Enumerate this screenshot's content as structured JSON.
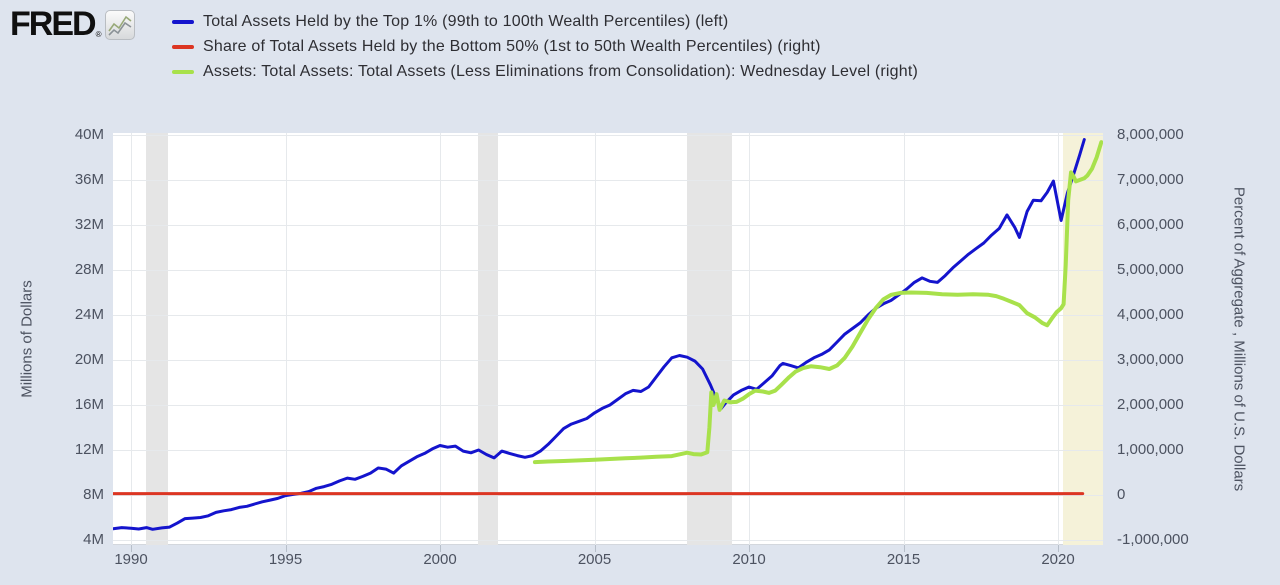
{
  "header": {
    "logo_text": "FRED",
    "logo_registered_mark": "®",
    "legend": [
      {
        "label": "Total Assets Held by the Top 1% (99th to 100th Wealth Percentiles) (left)",
        "color": "#1414cd"
      },
      {
        "label": "Share of Total Assets Held by the Bottom 50% (1st to 50th Wealth Percentiles) (right)",
        "color": "#dc3522"
      },
      {
        "label": "Assets: Total Assets: Total Assets (Less Eliminations from Consolidation): Wednesday Level (right)",
        "color": "#a8e14b"
      }
    ]
  },
  "axes": {
    "left": {
      "title": "Millions of Dollars",
      "ticks": [
        {
          "label": "40M",
          "v": 40
        },
        {
          "label": "36M",
          "v": 36
        },
        {
          "label": "32M",
          "v": 32
        },
        {
          "label": "28M",
          "v": 28
        },
        {
          "label": "24M",
          "v": 24
        },
        {
          "label": "20M",
          "v": 20
        },
        {
          "label": "16M",
          "v": 16
        },
        {
          "label": "12M",
          "v": 12
        },
        {
          "label": "8M",
          "v": 8
        },
        {
          "label": "4M",
          "v": 4
        }
      ],
      "map": {
        "v0": 4,
        "p0": 407,
        "v1": 40,
        "p1": 2
      }
    },
    "right": {
      "title": "Percent of Aggregate , Millions of U.S. Dollars",
      "ticks": [
        {
          "label": "8,000,000",
          "v": 8
        },
        {
          "label": "7,000,000",
          "v": 7
        },
        {
          "label": "6,000,000",
          "v": 6
        },
        {
          "label": "5,000,000",
          "v": 5
        },
        {
          "label": "4,000,000",
          "v": 4
        },
        {
          "label": "3,000,000",
          "v": 3
        },
        {
          "label": "2,000,000",
          "v": 2
        },
        {
          "label": "1,000,000",
          "v": 1
        },
        {
          "label": "0",
          "v": 0
        },
        {
          "label": "-1,000,000",
          "v": -1
        }
      ],
      "map": {
        "v0": 0,
        "p0": 362,
        "v1": 8,
        "p1": 2
      }
    },
    "x": {
      "ticks": [
        {
          "label": "1990",
          "v": 1990
        },
        {
          "label": "1995",
          "v": 1995
        },
        {
          "label": "2000",
          "v": 2000
        },
        {
          "label": "2005",
          "v": 2005
        },
        {
          "label": "2010",
          "v": 2010
        },
        {
          "label": "2015",
          "v": 2015
        },
        {
          "label": "2020",
          "v": 2020
        }
      ],
      "map": {
        "v0": 1990,
        "p0": 18,
        "v1": 2020,
        "p1": 945
      }
    }
  },
  "chart_data": {
    "type": "line",
    "x_range_years": [
      1989.42,
      2021.46
    ],
    "left_axis_range": [
      "4M",
      "40M"
    ],
    "right_axis_range": [
      -1000000,
      8000000
    ],
    "grid": true,
    "bands": [
      {
        "name": "recession-1990-91",
        "from": 1990.5,
        "to": 1991.2,
        "color": "#e5e5e5"
      },
      {
        "name": "recession-2001",
        "from": 2001.23,
        "to": 2001.88,
        "color": "#e5e5e5"
      },
      {
        "name": "recession-2008-09",
        "from": 2007.98,
        "to": 2009.45,
        "color": "#e5e5e5"
      },
      {
        "name": "recession-2020",
        "from": 2020.16,
        "to": 2021.46,
        "color": "#f5f2d9"
      }
    ],
    "series": [
      {
        "name": "Total Assets Held by the Top 1% (99th to 100th Wealth Percentiles)",
        "axis": "left",
        "units": "axis M (millions of dollars)",
        "color": "#1414cd",
        "width": 3,
        "points": [
          [
            1989.42,
            5.0
          ],
          [
            1989.7,
            5.1
          ],
          [
            1990.0,
            5.05
          ],
          [
            1990.25,
            4.98
          ],
          [
            1990.5,
            5.1
          ],
          [
            1990.7,
            4.95
          ],
          [
            1991.0,
            5.08
          ],
          [
            1991.25,
            5.15
          ],
          [
            1991.5,
            5.5
          ],
          [
            1991.75,
            5.9
          ],
          [
            1992.0,
            5.95
          ],
          [
            1992.25,
            6.0
          ],
          [
            1992.5,
            6.15
          ],
          [
            1992.75,
            6.45
          ],
          [
            1993.0,
            6.6
          ],
          [
            1993.25,
            6.7
          ],
          [
            1993.5,
            6.9
          ],
          [
            1993.75,
            7.0
          ],
          [
            1994.0,
            7.2
          ],
          [
            1994.25,
            7.4
          ],
          [
            1994.5,
            7.55
          ],
          [
            1994.75,
            7.7
          ],
          [
            1995.0,
            7.95
          ],
          [
            1995.25,
            8.05
          ],
          [
            1995.5,
            8.15
          ],
          [
            1995.75,
            8.3
          ],
          [
            1996.0,
            8.6
          ],
          [
            1996.25,
            8.75
          ],
          [
            1996.5,
            8.95
          ],
          [
            1996.75,
            9.25
          ],
          [
            1997.0,
            9.5
          ],
          [
            1997.25,
            9.4
          ],
          [
            1997.5,
            9.65
          ],
          [
            1997.75,
            9.95
          ],
          [
            1998.0,
            10.4
          ],
          [
            1998.25,
            10.3
          ],
          [
            1998.5,
            9.95
          ],
          [
            1998.75,
            10.6
          ],
          [
            1999.0,
            11.0
          ],
          [
            1999.25,
            11.4
          ],
          [
            1999.5,
            11.7
          ],
          [
            1999.75,
            12.1
          ],
          [
            2000.0,
            12.4
          ],
          [
            2000.25,
            12.25
          ],
          [
            2000.5,
            12.35
          ],
          [
            2000.75,
            11.9
          ],
          [
            2001.0,
            11.75
          ],
          [
            2001.25,
            12.0
          ],
          [
            2001.5,
            11.6
          ],
          [
            2001.75,
            11.3
          ],
          [
            2002.0,
            11.9
          ],
          [
            2002.25,
            11.7
          ],
          [
            2002.5,
            11.5
          ],
          [
            2002.75,
            11.35
          ],
          [
            2003.0,
            11.5
          ],
          [
            2003.25,
            11.9
          ],
          [
            2003.5,
            12.5
          ],
          [
            2003.75,
            13.2
          ],
          [
            2004.0,
            13.9
          ],
          [
            2004.25,
            14.3
          ],
          [
            2004.5,
            14.55
          ],
          [
            2004.75,
            14.8
          ],
          [
            2005.0,
            15.3
          ],
          [
            2005.25,
            15.7
          ],
          [
            2005.5,
            16.0
          ],
          [
            2005.75,
            16.5
          ],
          [
            2006.0,
            17.0
          ],
          [
            2006.25,
            17.3
          ],
          [
            2006.5,
            17.2
          ],
          [
            2006.75,
            17.6
          ],
          [
            2007.0,
            18.5
          ],
          [
            2007.25,
            19.4
          ],
          [
            2007.5,
            20.2
          ],
          [
            2007.75,
            20.4
          ],
          [
            2008.0,
            20.25
          ],
          [
            2008.25,
            19.9
          ],
          [
            2008.5,
            19.2
          ],
          [
            2008.75,
            17.8
          ],
          [
            2009.0,
            16.2
          ],
          [
            2009.1,
            15.7
          ],
          [
            2009.25,
            16.2
          ],
          [
            2009.5,
            16.9
          ],
          [
            2009.75,
            17.3
          ],
          [
            2010.0,
            17.6
          ],
          [
            2010.25,
            17.4
          ],
          [
            2010.5,
            18.0
          ],
          [
            2010.75,
            18.6
          ],
          [
            2011.0,
            19.5
          ],
          [
            2011.1,
            19.7
          ],
          [
            2011.35,
            19.5
          ],
          [
            2011.6,
            19.3
          ],
          [
            2011.85,
            19.8
          ],
          [
            2012.1,
            20.2
          ],
          [
            2012.35,
            20.5
          ],
          [
            2012.6,
            20.9
          ],
          [
            2012.85,
            21.6
          ],
          [
            2013.1,
            22.3
          ],
          [
            2013.35,
            22.8
          ],
          [
            2013.6,
            23.3
          ],
          [
            2013.85,
            24.0
          ],
          [
            2014.1,
            24.6
          ],
          [
            2014.35,
            25.0
          ],
          [
            2014.6,
            25.3
          ],
          [
            2014.85,
            25.8
          ],
          [
            2015.1,
            26.3
          ],
          [
            2015.35,
            26.9
          ],
          [
            2015.6,
            27.3
          ],
          [
            2015.85,
            27.0
          ],
          [
            2016.1,
            26.9
          ],
          [
            2016.35,
            27.5
          ],
          [
            2016.6,
            28.2
          ],
          [
            2016.85,
            28.8
          ],
          [
            2017.1,
            29.4
          ],
          [
            2017.35,
            29.9
          ],
          [
            2017.6,
            30.4
          ],
          [
            2017.85,
            31.1
          ],
          [
            2018.1,
            31.7
          ],
          [
            2018.35,
            32.9
          ],
          [
            2018.6,
            31.8
          ],
          [
            2018.75,
            30.9
          ],
          [
            2019.0,
            33.2
          ],
          [
            2019.2,
            34.2
          ],
          [
            2019.45,
            34.15
          ],
          [
            2019.65,
            34.9
          ],
          [
            2019.85,
            35.9
          ],
          [
            2020.1,
            32.4
          ],
          [
            2020.3,
            34.8
          ],
          [
            2020.55,
            36.9
          ],
          [
            2020.7,
            38.2
          ],
          [
            2020.85,
            39.6
          ]
        ]
      },
      {
        "name": "Share of Total Assets Held by the Bottom 50% (1st to 50th Wealth Percentiles)",
        "axis": "right",
        "units": "percent (~2%), flat at ≈0 on an axis scaled in millions",
        "color": "#dc3522",
        "width": 3,
        "points": [
          [
            1989.42,
            0.03
          ],
          [
            2020.8,
            0.03
          ]
        ]
      },
      {
        "name": "Assets: Total Assets: Total Assets (Less Eliminations from Consolidation): Wednesday Level",
        "axis": "right",
        "units": "millions of U.S. dollars (value ×1,000,000)",
        "color": "#a8e14b",
        "width": 4,
        "points": [
          [
            2003.07,
            0.73
          ],
          [
            2003.5,
            0.745
          ],
          [
            2004.0,
            0.755
          ],
          [
            2004.5,
            0.77
          ],
          [
            2005.0,
            0.785
          ],
          [
            2005.5,
            0.8
          ],
          [
            2006.0,
            0.815
          ],
          [
            2006.5,
            0.83
          ],
          [
            2007.0,
            0.85
          ],
          [
            2007.5,
            0.865
          ],
          [
            2008.0,
            0.94
          ],
          [
            2008.2,
            0.91
          ],
          [
            2008.45,
            0.9
          ],
          [
            2008.65,
            0.95
          ],
          [
            2008.72,
            1.5
          ],
          [
            2008.78,
            2.28
          ],
          [
            2008.85,
            2.0
          ],
          [
            2008.95,
            2.24
          ],
          [
            2009.05,
            1.89
          ],
          [
            2009.2,
            2.1
          ],
          [
            2009.4,
            2.06
          ],
          [
            2009.6,
            2.07
          ],
          [
            2009.8,
            2.14
          ],
          [
            2010.0,
            2.24
          ],
          [
            2010.2,
            2.32
          ],
          [
            2010.45,
            2.3
          ],
          [
            2010.65,
            2.27
          ],
          [
            2010.85,
            2.32
          ],
          [
            2011.05,
            2.45
          ],
          [
            2011.3,
            2.62
          ],
          [
            2011.5,
            2.74
          ],
          [
            2011.75,
            2.82
          ],
          [
            2012.0,
            2.86
          ],
          [
            2012.3,
            2.84
          ],
          [
            2012.6,
            2.8
          ],
          [
            2012.85,
            2.88
          ],
          [
            2013.1,
            3.05
          ],
          [
            2013.35,
            3.3
          ],
          [
            2013.6,
            3.6
          ],
          [
            2013.85,
            3.9
          ],
          [
            2014.1,
            4.15
          ],
          [
            2014.35,
            4.35
          ],
          [
            2014.6,
            4.45
          ],
          [
            2014.9,
            4.49
          ],
          [
            2015.25,
            4.5
          ],
          [
            2015.75,
            4.49
          ],
          [
            2016.25,
            4.46
          ],
          [
            2016.75,
            4.45
          ],
          [
            2017.25,
            4.46
          ],
          [
            2017.75,
            4.45
          ],
          [
            2018.0,
            4.42
          ],
          [
            2018.25,
            4.36
          ],
          [
            2018.5,
            4.29
          ],
          [
            2018.75,
            4.22
          ],
          [
            2019.0,
            4.04
          ],
          [
            2019.25,
            3.95
          ],
          [
            2019.5,
            3.82
          ],
          [
            2019.65,
            3.77
          ],
          [
            2019.8,
            3.92
          ],
          [
            2019.95,
            4.06
          ],
          [
            2020.1,
            4.15
          ],
          [
            2020.18,
            4.24
          ],
          [
            2020.25,
            5.1
          ],
          [
            2020.33,
            6.55
          ],
          [
            2020.42,
            7.17
          ],
          [
            2020.5,
            7.08
          ],
          [
            2020.58,
            6.97
          ],
          [
            2020.7,
            7.0
          ],
          [
            2020.85,
            7.04
          ],
          [
            2020.95,
            7.1
          ],
          [
            2021.1,
            7.25
          ],
          [
            2021.25,
            7.5
          ],
          [
            2021.4,
            7.84
          ]
        ]
      }
    ]
  }
}
